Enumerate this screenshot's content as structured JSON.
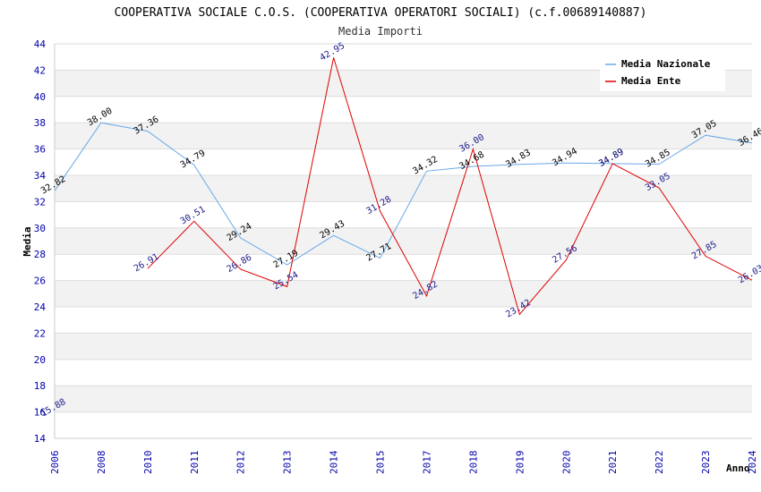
{
  "chart_data": {
    "type": "line",
    "title": "COOPERATIVA SOCIALE C.O.S. (COOPERATIVA OPERATORI SOCIALI) (c.f.00689140887)",
    "subtitle": "Media Importi",
    "xlabel": "Anno",
    "ylabel": "Media",
    "ylim": [
      14,
      44
    ],
    "yticks": [
      "14",
      "16",
      "18",
      "20",
      "22",
      "24",
      "26",
      "28",
      "30",
      "32",
      "34",
      "36",
      "38",
      "40",
      "42",
      "44"
    ],
    "categories": [
      "2006",
      "2008",
      "2010",
      "2011",
      "2012",
      "2013",
      "2014",
      "2015",
      "2017",
      "2018",
      "2019",
      "2020",
      "2021",
      "2022",
      "2023",
      "2024"
    ],
    "legend_position": "top-right",
    "series": [
      {
        "name": "Media Nazionale",
        "color": "#6aa8e8",
        "values": [
          32.82,
          38.0,
          37.36,
          34.79,
          29.24,
          27.19,
          29.43,
          27.71,
          34.32,
          34.68,
          34.83,
          34.94,
          34.89,
          34.85,
          37.05,
          36.46
        ],
        "labels": [
          "32.82",
          "38.00",
          "37.36",
          "34.79",
          "29.24",
          "27.19",
          "29.43",
          "27.71",
          "34.32",
          "34.68",
          "34.83",
          "34.94",
          "34.89",
          "34.85",
          "37.05",
          "36.46"
        ]
      },
      {
        "name": "Media Ente",
        "color": "#dd0000",
        "values": [
          15.88,
          null,
          26.91,
          30.51,
          26.86,
          25.54,
          42.95,
          31.28,
          24.82,
          36.0,
          23.42,
          27.56,
          34.89,
          33.05,
          27.85,
          26.03
        ],
        "labels": [
          "15.88",
          "",
          "26.91",
          "30.51",
          "26.86",
          "25.54",
          "42.95",
          "31.28",
          "24.82",
          "36.00",
          "23.42",
          "27.56",
          "34.89",
          "33.05",
          "27.85",
          "26.03"
        ]
      }
    ]
  }
}
